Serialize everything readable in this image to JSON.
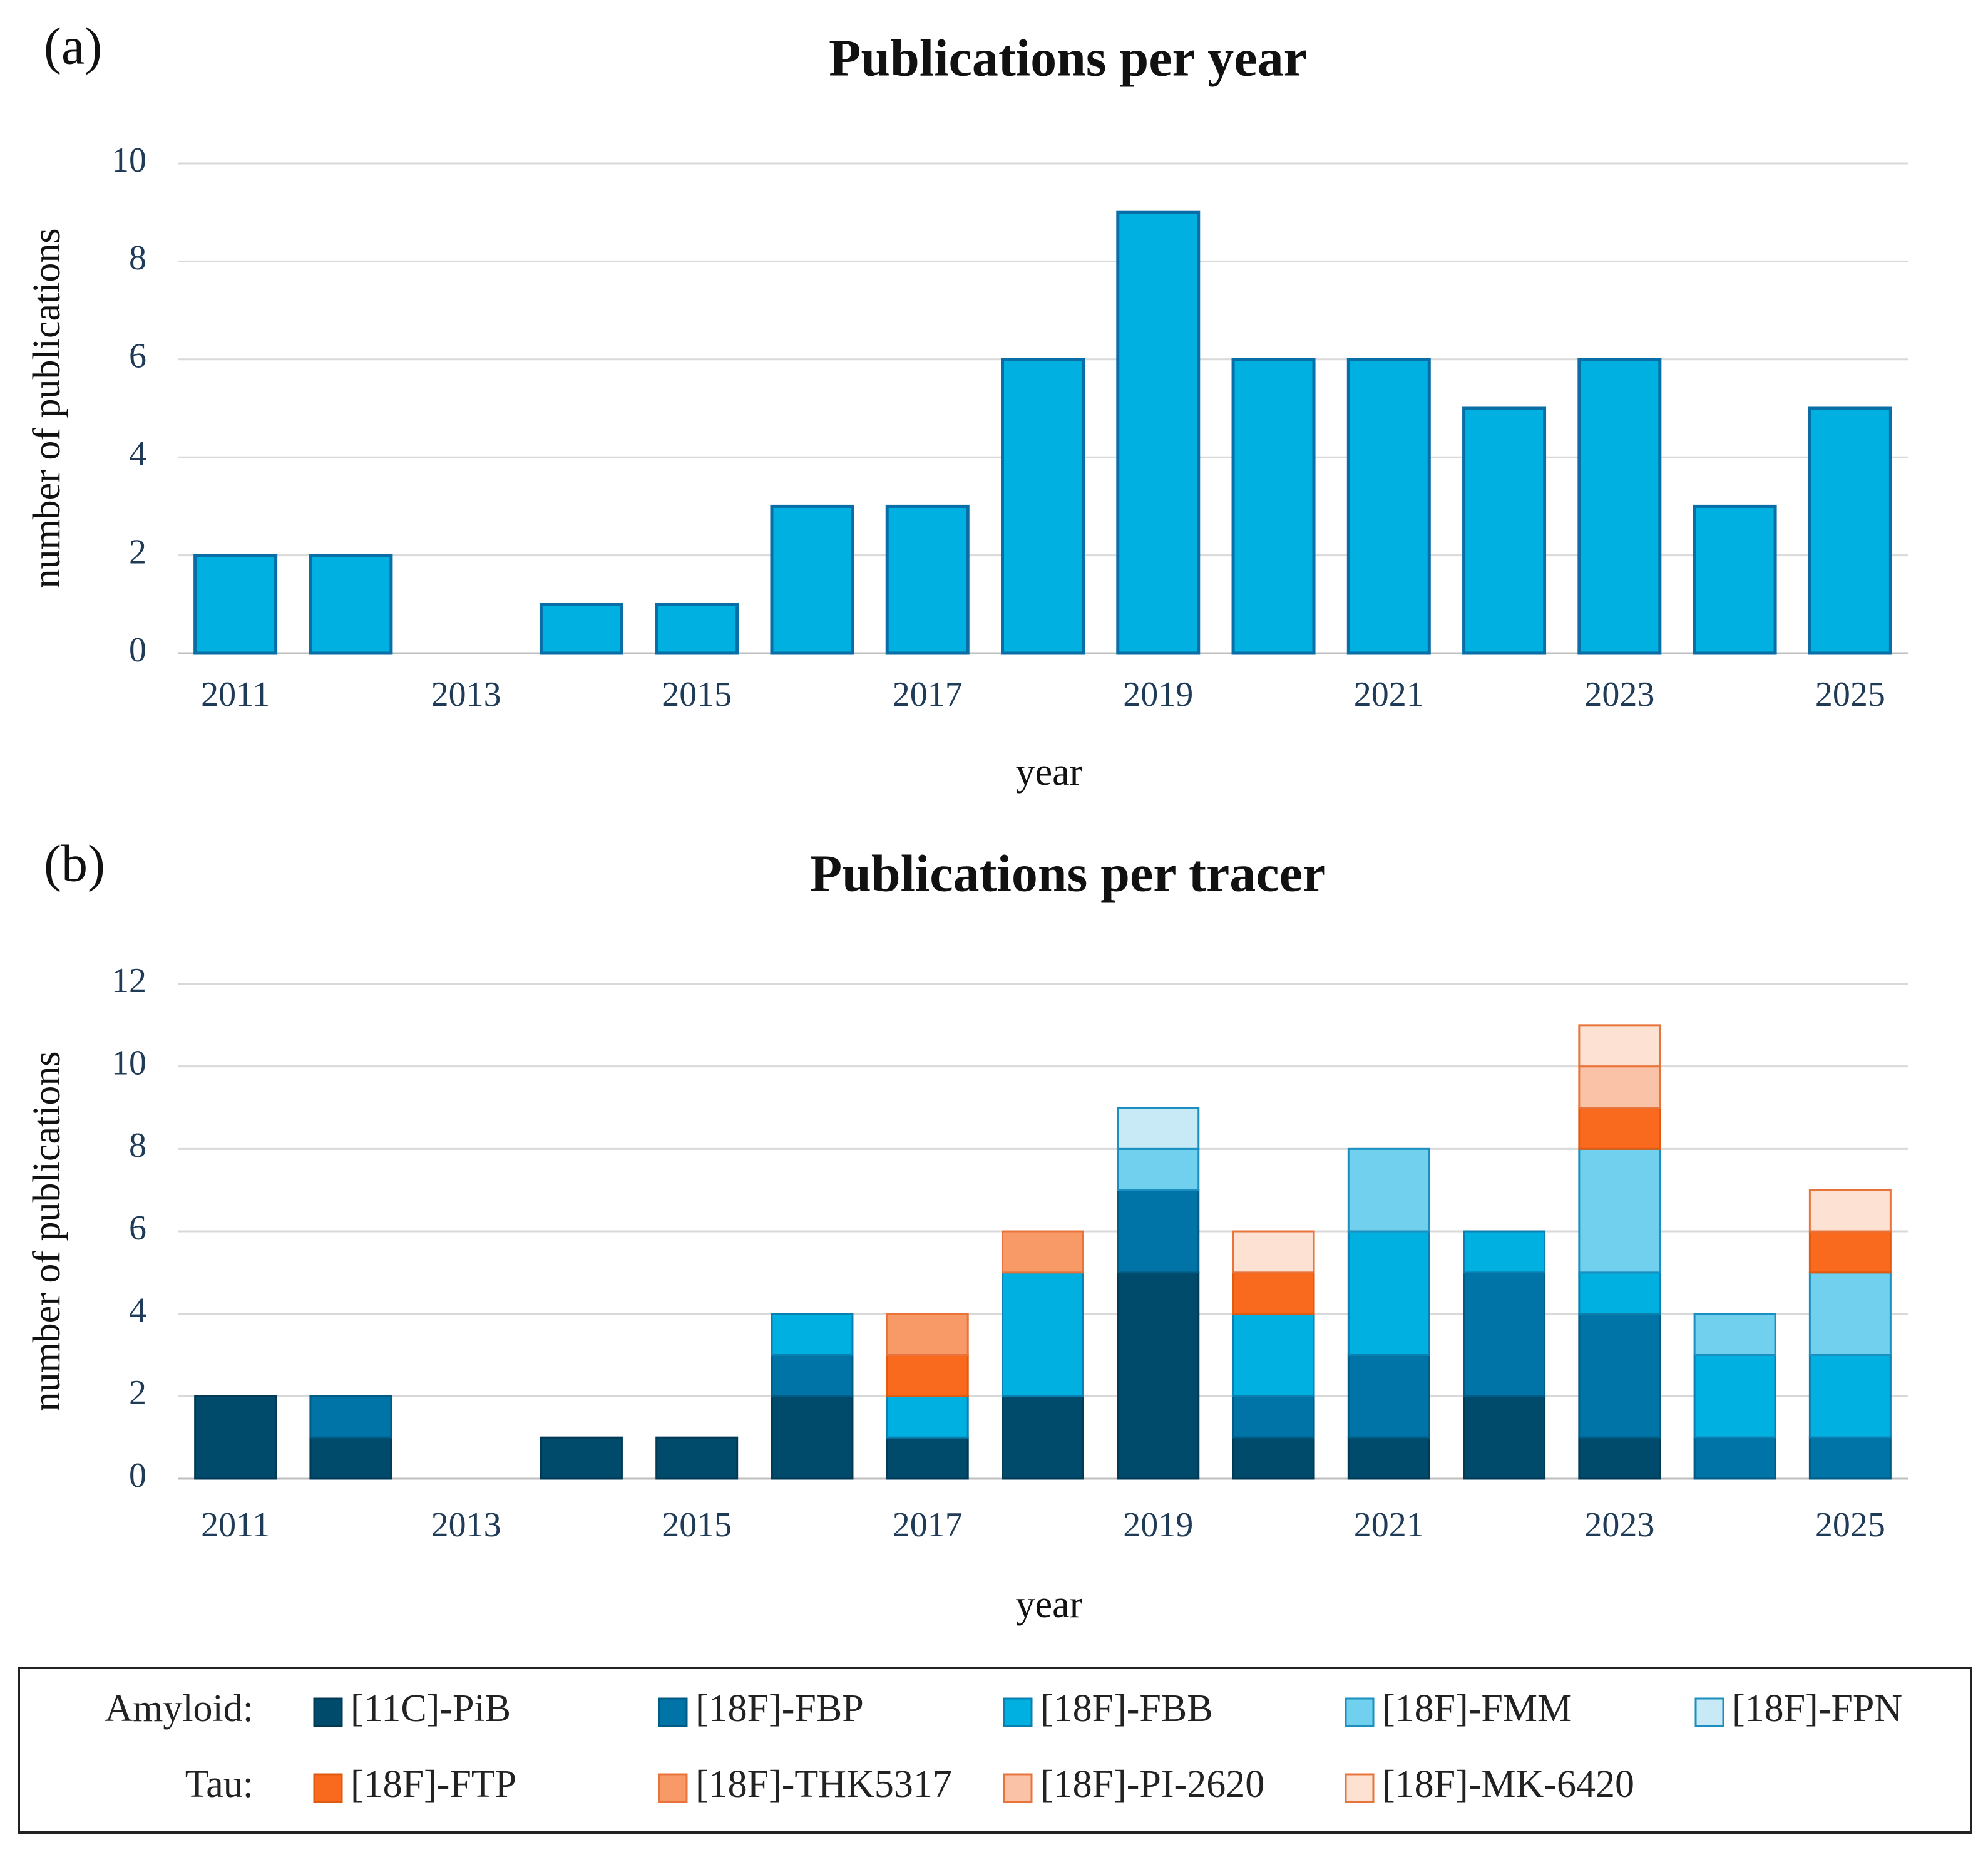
{
  "chart_data": [
    {
      "type": "bar",
      "panel": "(a)",
      "title": "Publications per year",
      "x_label": "year",
      "y_label": "number of publications",
      "categories": [
        "2011",
        null,
        "2013",
        null,
        "2015",
        null,
        "2017",
        null,
        "2019",
        null,
        "2021",
        null,
        "2023",
        null,
        "2025"
      ],
      "values": [
        2,
        2,
        0,
        1,
        1,
        3,
        3,
        6,
        9,
        6,
        6,
        5,
        6,
        3,
        5
      ],
      "color": "#00b0e0",
      "edgecolor": "#0a6ea6",
      "ylim": [
        0,
        10
      ],
      "yticks": [
        0,
        2,
        4,
        6,
        8,
        10
      ],
      "grid": true
    },
    {
      "type": "stacked_bar",
      "panel": "(b)",
      "title": "Publications per tracer",
      "x_label": "year",
      "y_label": "number of publications",
      "categories": [
        "2011",
        null,
        "2013",
        null,
        "2015",
        null,
        "2017",
        null,
        "2019",
        null,
        "2021",
        null,
        "2023",
        null,
        "2025"
      ],
      "series": [
        {
          "name": "[11C]-PiB",
          "group": "Amyloid:",
          "color": "#004b6b",
          "edgecolor": "#003a55",
          "values": [
            2,
            1,
            0,
            1,
            1,
            2,
            1,
            2,
            5,
            1,
            1,
            2,
            1,
            0,
            0
          ]
        },
        {
          "name": "[18F]-FBP",
          "group": "Amyloid:",
          "color": "#0074a6",
          "edgecolor": "#005b85",
          "values": [
            0,
            1,
            0,
            0,
            0,
            1,
            0,
            0,
            2,
            1,
            2,
            3,
            3,
            1,
            1
          ]
        },
        {
          "name": "[18F]-FBB",
          "group": "Amyloid:",
          "color": "#00b0e0",
          "edgecolor": "#0a7fb0",
          "values": [
            0,
            0,
            0,
            0,
            0,
            1,
            1,
            3,
            0,
            2,
            3,
            1,
            1,
            2,
            2
          ]
        },
        {
          "name": "[18F]-FMM",
          "group": "Amyloid:",
          "color": "#72d0ef",
          "edgecolor": "#1b8fbf",
          "values": [
            0,
            0,
            0,
            0,
            0,
            0,
            0,
            0,
            1,
            0,
            2,
            0,
            3,
            1,
            2
          ]
        },
        {
          "name": "[18F]-FPN",
          "group": "Amyloid:",
          "color": "#c8eaf7",
          "edgecolor": "#1b8fbf",
          "values": [
            0,
            0,
            0,
            0,
            0,
            0,
            0,
            0,
            1,
            0,
            0,
            0,
            0,
            0,
            0
          ]
        },
        {
          "name": "[18F]-FTP",
          "group": "Tau:",
          "color": "#fa6a1e",
          "edgecolor": "#e05a10",
          "values": [
            0,
            0,
            0,
            0,
            0,
            0,
            1,
            0,
            0,
            1,
            0,
            0,
            1,
            0,
            1
          ]
        },
        {
          "name": "[18F]-THK5317",
          "group": "Tau:",
          "color": "#f89a68",
          "edgecolor": "#e8743b",
          "values": [
            0,
            0,
            0,
            0,
            0,
            0,
            1,
            1,
            0,
            0,
            0,
            0,
            0,
            0,
            0
          ]
        },
        {
          "name": "[18F]-PI-2620",
          "group": "Tau:",
          "color": "#fac3a8",
          "edgecolor": "#e8743b",
          "values": [
            0,
            0,
            0,
            0,
            0,
            0,
            0,
            0,
            0,
            0,
            0,
            0,
            1,
            0,
            0
          ]
        },
        {
          "name": "[18F]-MK-6420",
          "group": "Tau:",
          "color": "#fde2d4",
          "edgecolor": "#e8743b",
          "values": [
            0,
            0,
            0,
            0,
            0,
            0,
            0,
            0,
            0,
            1,
            0,
            0,
            1,
            0,
            1
          ]
        }
      ],
      "ylim": [
        0,
        12
      ],
      "yticks": [
        0,
        2,
        4,
        6,
        8,
        10,
        12
      ],
      "grid": true
    }
  ]
}
